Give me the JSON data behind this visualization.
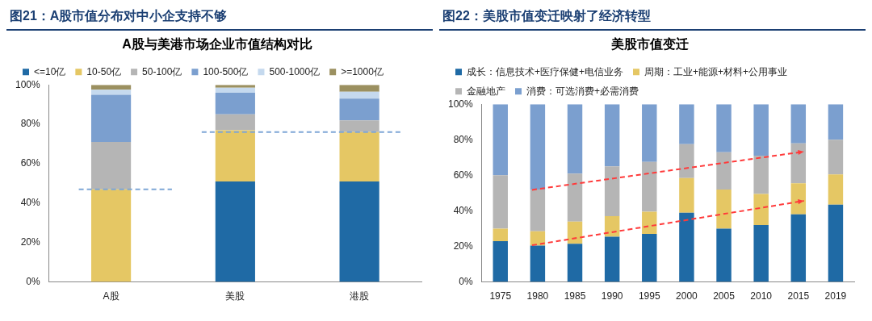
{
  "chart_data": [
    {
      "type": "bar",
      "title": "图21：A股市值分布对中小企支持不够",
      "subtitle": "A股与美港市场企业市值结构对比",
      "categories": [
        "A股",
        "美股",
        "港股"
      ],
      "stacked": true,
      "legend": "top",
      "series": [
        {
          "name": "<=10亿",
          "color": "#1f6aa5",
          "values": [
            0,
            51,
            51
          ]
        },
        {
          "name": "10-50亿",
          "color": "#e5c764",
          "values": [
            47,
            26,
            25
          ]
        },
        {
          "name": "50-100亿",
          "color": "#b5b5b5",
          "values": [
            24,
            8,
            6
          ]
        },
        {
          "name": "100-500亿",
          "color": "#7b9fcf",
          "values": [
            24,
            11,
            11
          ]
        },
        {
          "name": "500-1000亿",
          "color": "#c5d9ee",
          "values": [
            2.5,
            2.5,
            3.5
          ]
        },
        {
          "name": ">=1000亿",
          "color": "#9b9060",
          "values": [
            2.5,
            1.5,
            3.5
          ]
        }
      ],
      "ref_lines": [
        {
          "axis": "y",
          "value": 47,
          "color": "#7fa7d6",
          "line_style": "dashed"
        },
        {
          "axis": "y",
          "value": 76,
          "color": "#7fa7d6",
          "line_style": "dashed"
        }
      ],
      "ylim": [
        0,
        100
      ],
      "yticks": [
        {
          "value": 0,
          "label": "0%"
        },
        {
          "value": 20,
          "label": "20%"
        },
        {
          "value": 40,
          "label": "40%"
        },
        {
          "value": 60,
          "label": "60%"
        },
        {
          "value": 80,
          "label": "80%"
        },
        {
          "value": 100,
          "label": "100%"
        }
      ]
    },
    {
      "type": "bar",
      "title": "图22：美股市值变迁映射了经济转型",
      "subtitle": "美股市值变迁",
      "categories": [
        "1975",
        "1980",
        "1985",
        "1990",
        "1995",
        "2000",
        "2005",
        "2010",
        "2015",
        "2019"
      ],
      "stacked": true,
      "legend": "top",
      "series": [
        {
          "name": "成长：信息技术+医疗保健+电信业务",
          "color": "#1f6aa5",
          "values": [
            23,
            20.5,
            21.5,
            25.5,
            27,
            39,
            30,
            32,
            38,
            43.5
          ]
        },
        {
          "name": "周期：工业+能源+材料+公用事业",
          "color": "#e5c764",
          "values": [
            7,
            8,
            12.5,
            11.5,
            12.5,
            19.5,
            22,
            17.5,
            17.5,
            17
          ]
        },
        {
          "name": "金融地产",
          "color": "#b5b5b5",
          "values": [
            30,
            23.5,
            27,
            28,
            28,
            19,
            21,
            21.5,
            22.5,
            19.5
          ]
        },
        {
          "name": "消费：可选消费+必需消费",
          "color": "#7b9fcf",
          "values": [
            40,
            48,
            39,
            35,
            32.5,
            22.5,
            27,
            29,
            22,
            20
          ]
        }
      ],
      "ylim": [
        0,
        100
      ],
      "yticks": [
        {
          "value": 0,
          "label": "0%"
        },
        {
          "value": 20,
          "label": "20%"
        },
        {
          "value": 40,
          "label": "40%"
        },
        {
          "value": 60,
          "label": "60%"
        },
        {
          "value": 80,
          "label": "80%"
        },
        {
          "value": 100,
          "label": "100%"
        }
      ]
    }
  ]
}
